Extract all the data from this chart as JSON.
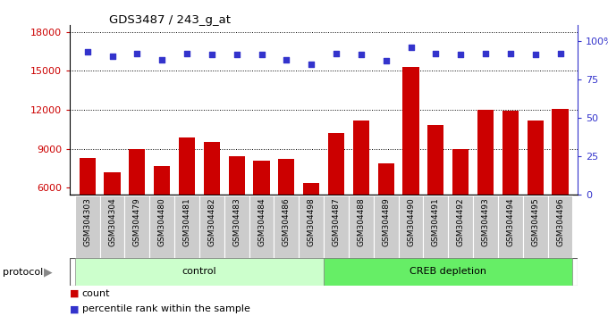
{
  "title": "GDS3487 / 243_g_at",
  "samples": [
    "GSM304303",
    "GSM304304",
    "GSM304479",
    "GSM304480",
    "GSM304481",
    "GSM304482",
    "GSM304483",
    "GSM304484",
    "GSM304486",
    "GSM304498",
    "GSM304487",
    "GSM304488",
    "GSM304489",
    "GSM304490",
    "GSM304491",
    "GSM304492",
    "GSM304493",
    "GSM304494",
    "GSM304495",
    "GSM304496"
  ],
  "counts": [
    8300,
    7200,
    9000,
    7700,
    9900,
    9500,
    8400,
    8100,
    8200,
    6400,
    10200,
    11200,
    7900,
    15300,
    10800,
    9000,
    12000,
    11900,
    11200,
    12100
  ],
  "percentile_ranks": [
    93,
    90,
    92,
    88,
    92,
    91,
    91,
    91,
    88,
    85,
    92,
    91,
    87,
    96,
    92,
    91,
    92,
    92,
    91,
    92
  ],
  "control_count": 10,
  "creb_count": 10,
  "bar_color": "#cc0000",
  "dot_color": "#3333cc",
  "ylim_left": [
    5500,
    18500
  ],
  "yticks_left": [
    6000,
    9000,
    12000,
    15000,
    18000
  ],
  "ylim_right": [
    0,
    110.25
  ],
  "yticks_right": [
    0,
    25,
    50,
    75,
    100
  ],
  "yticklabels_right": [
    "0",
    "25",
    "50",
    "75",
    "100%"
  ],
  "grid_values": [
    9000,
    12000,
    15000,
    18000
  ],
  "control_label": "control",
  "creb_label": "CREB depletion",
  "protocol_label": "protocol",
  "legend_count": "count",
  "legend_percentile": "percentile rank within the sample",
  "control_color": "#ccffcc",
  "creb_color": "#66ee66",
  "xticklabel_bg": "#cccccc"
}
